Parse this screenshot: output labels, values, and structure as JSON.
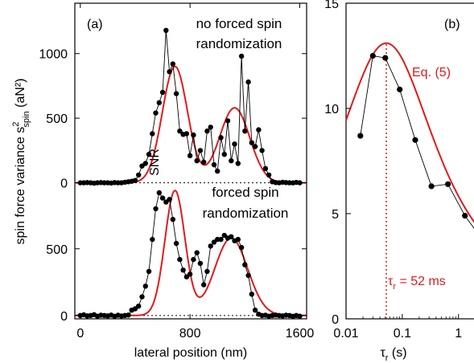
{
  "chart_data": [
    {
      "type": "scatter",
      "panel_label": "(a)",
      "xlabel": "lateral position (nm)",
      "ylabel": "spin force variance s²spin (aN²)",
      "ylabel_main": "spin force variance s",
      "ylabel_sup": "2",
      "ylabel_sub": "spin",
      "ylabel_units": " (aN²)",
      "xlim": [
        -40,
        1650
      ],
      "xticks": [
        0,
        800,
        1600
      ],
      "xtick_labels": [
        "0",
        "800",
        "1600"
      ],
      "subplots": [
        {
          "annotation": [
            "no forced spin",
            "randomization"
          ],
          "ylim": [
            -15,
            1390
          ],
          "yticks": [
            0,
            500,
            1000
          ],
          "ytick_labels": [
            "0",
            "500",
            "1000"
          ],
          "baseline": 0,
          "series": [
            {
              "kind": "points",
              "color": "#000000",
              "x": [
                0,
                25,
                50,
                75,
                100,
                125,
                150,
                175,
                200,
                225,
                250,
                275,
                300,
                325,
                350,
                375,
                400,
                425,
                450,
                475,
                500,
                525,
                550,
                575,
                600,
                625,
                650,
                675,
                700,
                725,
                750,
                775,
                800,
                825,
                850,
                875,
                900,
                925,
                950,
                975,
                1000,
                1025,
                1050,
                1075,
                1100,
                1125,
                1150,
                1175,
                1200,
                1225,
                1250,
                1275,
                1300,
                1325,
                1350,
                1375,
                1400,
                1425,
                1450,
                1475,
                1500,
                1525,
                1550,
                1575,
                1600
              ],
              "y": [
                0,
                0,
                2,
                0,
                -3,
                0,
                2,
                0,
                0,
                -2,
                2,
                0,
                0,
                4,
                8,
                12,
                18,
                60,
                130,
                150,
                220,
                380,
                540,
                620,
                700,
                1180,
                860,
                920,
                690,
                400,
                375,
                380,
                210,
                370,
                170,
                250,
                160,
                400,
                430,
                140,
                90,
                350,
                220,
                480,
                170,
                300,
                150,
                980,
                400,
                780,
                310,
                280,
                410,
                250,
                110,
                60,
                8,
                2,
                0,
                4,
                2,
                0,
                -1,
                3,
                0
              ]
            },
            {
              "kind": "fit",
              "color": "#e11a1a",
              "peaks": [
                {
                  "amp": 900,
                  "center": 690,
                  "sigma": 92
                },
                {
                  "amp": 580,
                  "center": 1125,
                  "sigma": 110
                }
              ]
            }
          ]
        },
        {
          "annotation": [
            "forced spin",
            "randomization"
          ],
          "ylim": [
            -25,
            980
          ],
          "yticks": [
            0,
            500
          ],
          "ytick_labels": [
            "0",
            "500"
          ],
          "baseline": 0,
          "series": [
            {
              "kind": "points",
              "color": "#000000",
              "x": [
                0,
                25,
                50,
                75,
                100,
                125,
                150,
                175,
                200,
                225,
                250,
                275,
                300,
                325,
                350,
                375,
                400,
                425,
                450,
                475,
                500,
                525,
                550,
                575,
                600,
                625,
                650,
                675,
                700,
                725,
                750,
                775,
                800,
                825,
                850,
                875,
                900,
                925,
                950,
                975,
                1000,
                1025,
                1050,
                1075,
                1100,
                1125,
                1150,
                1175,
                1200,
                1225,
                1250,
                1275,
                1300,
                1325,
                1350,
                1375,
                1400,
                1425,
                1450,
                1475,
                1500,
                1525,
                1550,
                1575,
                1600
              ],
              "y": [
                0,
                5,
                -3,
                0,
                6,
                -5,
                2,
                0,
                -3,
                3,
                -6,
                2,
                -4,
                0,
                3,
                40,
                50,
                70,
                140,
                220,
                330,
                570,
                800,
                920,
                880,
                850,
                870,
                720,
                540,
                420,
                340,
                290,
                310,
                420,
                470,
                390,
                230,
                330,
                520,
                550,
                570,
                570,
                600,
                580,
                590,
                560,
                570,
                510,
                380,
                300,
                160,
                40,
                10,
                0,
                2,
                -5,
                0,
                3,
                0,
                -3,
                2,
                0,
                -6,
                0,
                -5
              ]
            },
            {
              "kind": "fit",
              "color": "#e11a1a",
              "peaks": [
                {
                  "amp": 935,
                  "center": 690,
                  "sigma": 73
                },
                {
                  "amp": 580,
                  "center": 1100,
                  "sigma": 120
                }
              ]
            }
          ]
        }
      ]
    },
    {
      "type": "line",
      "panel_label": "(b)",
      "xlabel": "τr (s)",
      "xlabel_main": "τ",
      "xlabel_sub": "r",
      "xlabel_units": " (s)",
      "ylabel": "SNR",
      "xscale": "log",
      "xlim": [
        0.01,
        3.2
      ],
      "ylim": [
        0,
        15
      ],
      "xticks": [
        0.01,
        0.1,
        1
      ],
      "xtick_labels": [
        "0.01",
        "0.1",
        "1"
      ],
      "yticks": [
        0,
        5,
        10,
        15
      ],
      "ytick_labels": [
        "0",
        "5",
        "10",
        "15"
      ],
      "series": [
        {
          "kind": "points",
          "color": "#000000",
          "x": [
            0.018,
            0.03,
            0.05,
            0.09,
            0.17,
            0.33,
            0.65,
            1.3,
            2.6
          ],
          "y": [
            8.7,
            12.5,
            12.4,
            10.9,
            8.5,
            6.3,
            6.4,
            4.9,
            3.8
          ]
        },
        {
          "kind": "fit",
          "color": "#e11a1a",
          "label": "Eq. (5)",
          "peak_x": 0.052,
          "peak_y": 13.1,
          "width_decades": 1.15
        }
      ],
      "vline": {
        "x": 0.052,
        "color": "#e11a1a"
      },
      "vline_label_main": "τ",
      "vline_label_sub": "r",
      "vline_label_value": " = 52 ms",
      "fit_label": "Eq. (5)"
    }
  ]
}
